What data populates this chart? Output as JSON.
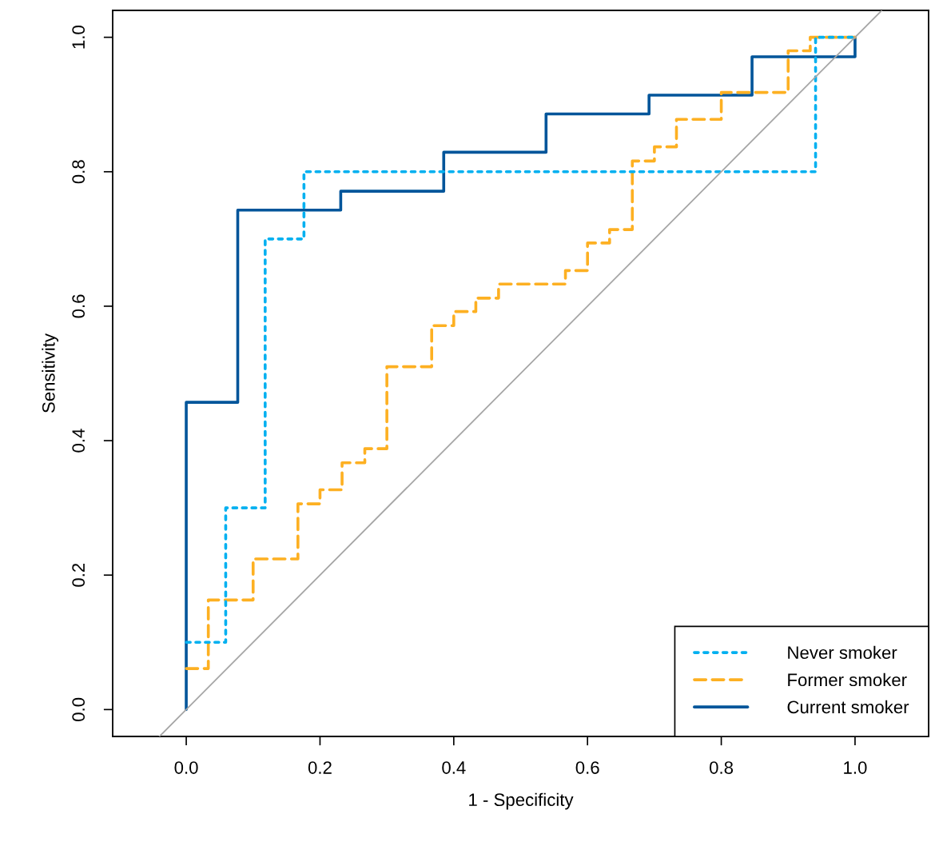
{
  "chart_data": {
    "type": "step",
    "xlabel": "1 - Specificity",
    "ylabel": "Sensitivity",
    "xlim": [
      -0.11,
      1.11
    ],
    "ylim": [
      -0.04,
      1.04
    ],
    "xticks": [
      {
        "value": 0,
        "label": "0.0"
      },
      {
        "value": 0.2,
        "label": "0.2"
      },
      {
        "value": 0.4,
        "label": "0.4"
      },
      {
        "value": 0.6,
        "label": "0.6"
      },
      {
        "value": 0.8,
        "label": "0.8"
      },
      {
        "value": 1,
        "label": "1.0"
      }
    ],
    "yticks": [
      {
        "value": 0,
        "label": "0.0"
      },
      {
        "value": 0.2,
        "label": "0.2"
      },
      {
        "value": 0.4,
        "label": "0.4"
      },
      {
        "value": 0.6,
        "label": "0.6"
      },
      {
        "value": 0.8,
        "label": "0.8"
      },
      {
        "value": 1,
        "label": "1.0"
      }
    ],
    "grid": false,
    "legend": "bottom right",
    "series": [
      {
        "type": "line",
        "color": "#a6a6a6",
        "line_style": "solid",
        "x": [
          -0.04,
          1.04
        ],
        "values": [
          -0.04,
          1.04
        ]
      },
      {
        "name": "Never smoker",
        "color": "#00b0f0",
        "line_style": "dotted",
        "x": [
          0,
          0.059,
          0.118,
          0.176,
          0.941,
          1.0
        ],
        "values": [
          0.1,
          0.3,
          0.7,
          0.8,
          1.0,
          1.0
        ]
      },
      {
        "name": "Former smoker",
        "color": "#fdb022",
        "line_style": "dashed",
        "x": [
          0,
          0.033,
          0.1,
          0.167,
          0.2,
          0.233,
          0.267,
          0.3,
          0.367,
          0.4,
          0.433,
          0.467,
          0.567,
          0.6,
          0.633,
          0.667,
          0.7,
          0.733,
          0.8,
          0.9,
          0.933,
          1.0
        ],
        "values": [
          0.061,
          0.163,
          0.224,
          0.306,
          0.327,
          0.367,
          0.388,
          0.51,
          0.571,
          0.592,
          0.612,
          0.633,
          0.653,
          0.694,
          0.714,
          0.816,
          0.837,
          0.878,
          0.918,
          0.98,
          1.0,
          1.0
        ]
      },
      {
        "name": "Current smoker",
        "color": "#00559a",
        "line_style": "solid",
        "x": [
          0,
          0,
          0.077,
          0.231,
          0.385,
          0.538,
          0.692,
          0.846,
          1.0
        ],
        "values": [
          0,
          0.457,
          0.743,
          0.771,
          0.829,
          0.886,
          0.914,
          0.971,
          1.0
        ]
      }
    ]
  }
}
